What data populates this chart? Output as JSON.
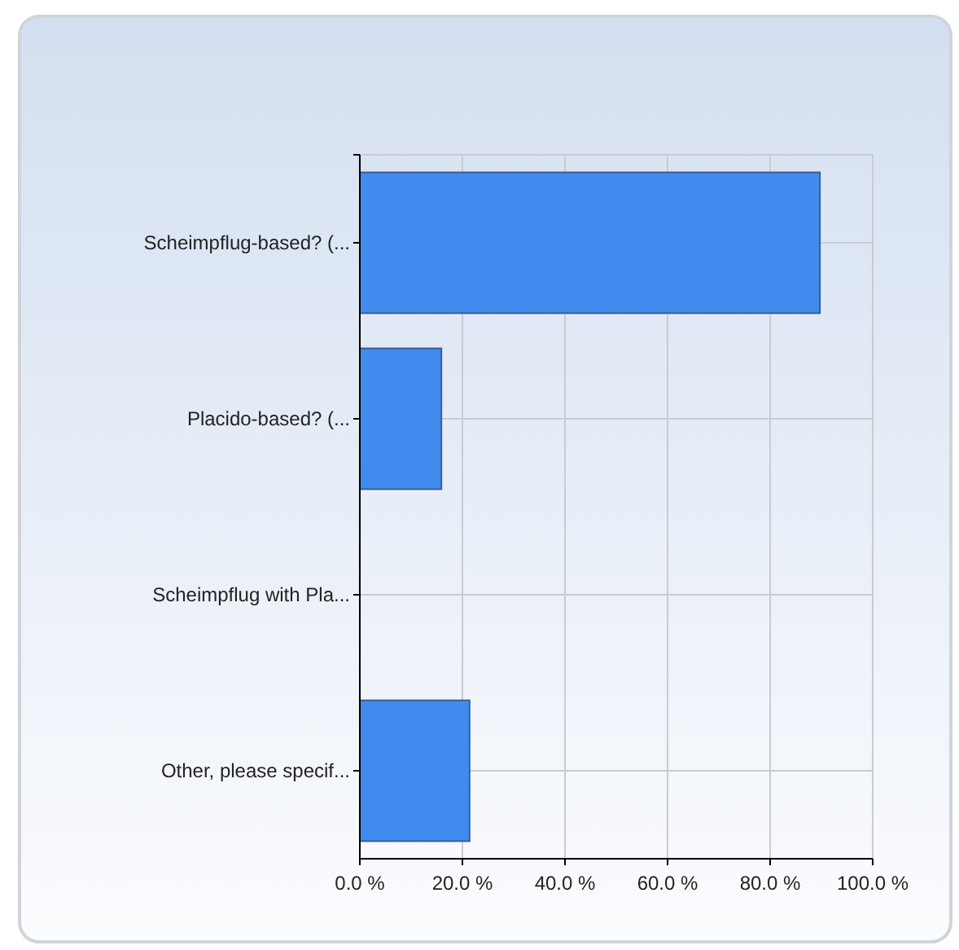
{
  "chart_data": {
    "type": "bar",
    "orientation": "horizontal",
    "categories": [
      "Scheimpflug-based? (...",
      "Placido-based? (...",
      "Scheimpflug with Pla...",
      "Other, please specif..."
    ],
    "values": [
      89.7,
      15.9,
      0,
      21.4
    ],
    "color": "#428bee",
    "xlim": [
      0,
      100
    ],
    "xticks": [
      {
        "value": 0,
        "label": "0.0 %"
      },
      {
        "value": 20,
        "label": "20.0 %"
      },
      {
        "value": 40,
        "label": "40.0 %"
      },
      {
        "value": 60,
        "label": "60.0 %"
      },
      {
        "value": 80,
        "label": "80.0 %"
      },
      {
        "value": 100,
        "label": "100.0 %"
      }
    ],
    "grid": true
  }
}
